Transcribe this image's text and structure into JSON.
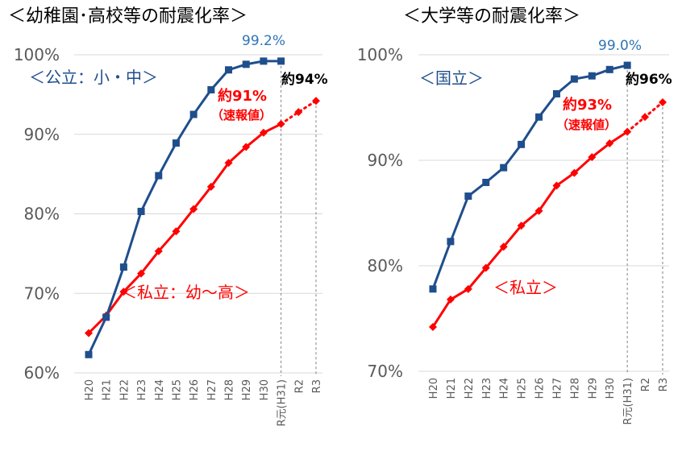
{
  "colors": {
    "blue": "#1f4e8c",
    "red": "#ff0000",
    "grid": "#d9d9d9",
    "axis_text": "#595959",
    "dash": "#7f7f7f"
  },
  "categories": [
    "H20",
    "H21",
    "H22",
    "H23",
    "H24",
    "H25",
    "H26",
    "H27",
    "H28",
    "H29",
    "H30",
    "R元(H31)",
    "R2",
    "R3"
  ],
  "chart_data": [
    {
      "type": "line",
      "title": "＜幼稚園･高校等の耐震化率＞",
      "ylim": [
        60,
        100
      ],
      "yticks": [
        "60%",
        "70%",
        "80%",
        "90%",
        "100%"
      ],
      "ytick_values": [
        60,
        70,
        80,
        90,
        100
      ],
      "grid": true,
      "series": [
        {
          "name": "＜公立：小・中＞",
          "color": "#1f4e8c",
          "values": [
            62.3,
            67.0,
            73.3,
            80.3,
            84.8,
            88.9,
            92.5,
            95.6,
            98.1,
            98.8,
            99.2,
            99.2
          ]
        },
        {
          "name": "＜私立：幼～高＞",
          "color": "#ff0000",
          "values": [
            65.0,
            67.2,
            70.2,
            72.5,
            75.3,
            77.8,
            80.6,
            83.4,
            86.4,
            88.4,
            90.2,
            91.3,
            92.8,
            94.2
          ],
          "projected_from": 11
        }
      ],
      "annotations": {
        "top_value": "99.2%",
        "approx_blue": "約94%",
        "approx_red_line1": "約91%",
        "approx_red_line2": "（速報値）"
      }
    },
    {
      "type": "line",
      "title": "＜大学等の耐震化率＞",
      "ylim": [
        70,
        100
      ],
      "yticks": [
        "70%",
        "80%",
        "90%",
        "100%"
      ],
      "ytick_values": [
        70,
        80,
        90,
        100
      ],
      "grid": true,
      "series": [
        {
          "name": "＜国立＞",
          "color": "#1f4e8c",
          "values": [
            77.8,
            82.3,
            86.6,
            87.9,
            89.3,
            91.5,
            94.1,
            96.3,
            97.7,
            98.0,
            98.6,
            99.0
          ]
        },
        {
          "name": "＜私立＞",
          "color": "#ff0000",
          "values": [
            74.2,
            76.8,
            77.8,
            79.8,
            81.8,
            83.8,
            85.2,
            87.6,
            88.8,
            90.3,
            91.6,
            92.7,
            94.1,
            95.5
          ],
          "projected_from": 11
        }
      ],
      "annotations": {
        "top_value": "99.0%",
        "approx_blue": "約96%",
        "approx_red_line1": "約93%",
        "approx_red_line2": "（速報値）"
      }
    }
  ]
}
